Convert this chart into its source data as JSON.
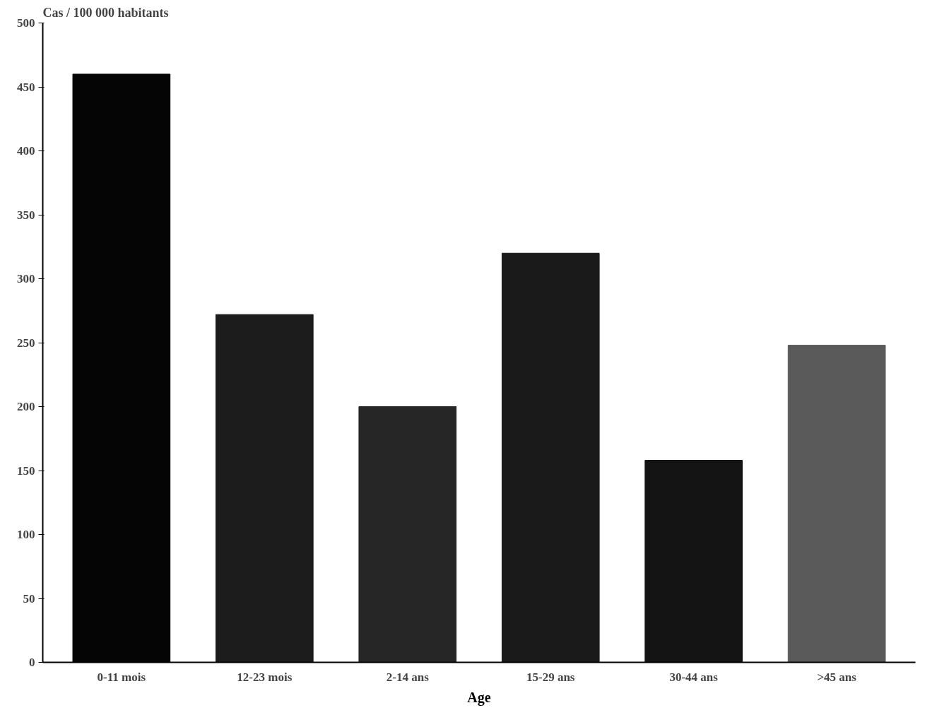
{
  "chart_data": {
    "type": "bar",
    "ylabel": "Cas / 100 000 habitants",
    "xlabel": "Age",
    "categories": [
      "0-11 mois",
      "12-23 mois",
      "2-14 ans",
      "15-29 ans",
      "30-44 ans",
      ">45 ans"
    ],
    "values": [
      460,
      272,
      200,
      320,
      158,
      248
    ],
    "colors": [
      "#050505",
      "#1c1c1c",
      "#262626",
      "#1a1a1a",
      "#141414",
      "#5a5a5a"
    ],
    "ylim": [
      0,
      500
    ],
    "yticks": [
      0,
      50,
      100,
      150,
      200,
      250,
      300,
      350,
      400,
      450,
      500
    ],
    "grid": false
  }
}
